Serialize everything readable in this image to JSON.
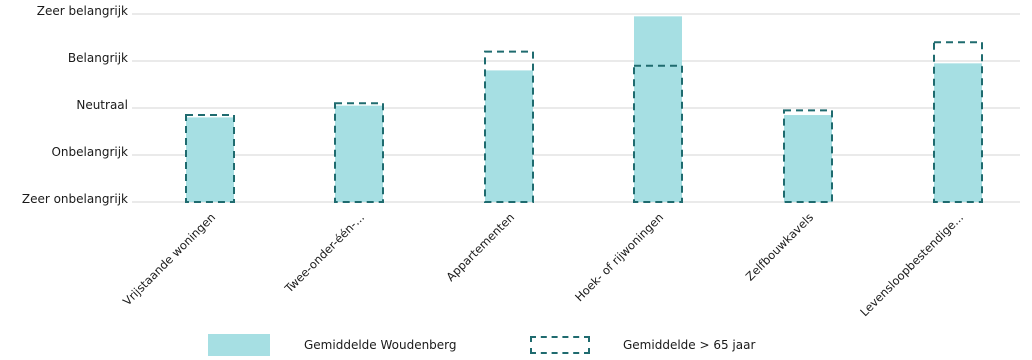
{
  "chart_data": {
    "type": "bar",
    "categories": [
      "Vrijstaande woningen",
      "Twee-onder-één-...",
      "Appartementen",
      "Hoek- of rijwoningen",
      "Zelfbouwkavels",
      "Levensloopbestendige..."
    ],
    "y_tick_labels": [
      "Zeer onbelangrijk",
      "Onbelangrijk",
      "Neutraal",
      "Belangrijk",
      "Zeer belangrijk"
    ],
    "ylim": [
      1,
      5
    ],
    "grid": true,
    "series": [
      {
        "name": "Gemiddelde Woudenberg",
        "style": "solid",
        "color": "#a6dfe3",
        "values": [
          2.8,
          3.05,
          3.8,
          4.95,
          2.85,
          3.95
        ]
      },
      {
        "name": "Gemiddelde > 65 jaar",
        "style": "dashed-outline",
        "color": "#1f6b6f",
        "values": [
          2.85,
          3.1,
          4.2,
          3.9,
          2.95,
          4.4
        ]
      }
    ],
    "legend_position": "bottom"
  }
}
